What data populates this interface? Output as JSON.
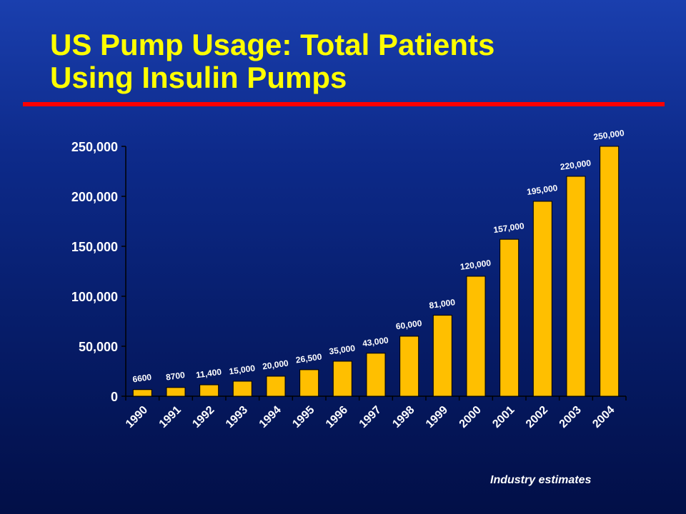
{
  "slide": {
    "title_line1": "US Pump Usage: Total Patients",
    "title_line2": "Using Insulin Pumps",
    "footnote": "Industry estimates"
  },
  "colors": {
    "title": "#ffff00",
    "rule": "#ff0000",
    "bar": "#ffbf00",
    "bar_edge": "#000000",
    "text": "#ffffff"
  },
  "chart_data": {
    "type": "bar",
    "categories": [
      "1990",
      "1991",
      "1992",
      "1993",
      "1994",
      "1995",
      "1996",
      "1997",
      "1998",
      "1999",
      "2000",
      "2001",
      "2002",
      "2003",
      "2004"
    ],
    "values": [
      6600,
      8700,
      11400,
      15000,
      20000,
      26500,
      35000,
      43000,
      60000,
      81000,
      120000,
      157000,
      195000,
      220000,
      250000
    ],
    "data_labels": [
      "6600",
      "8700",
      "11,400",
      "15,000",
      "20,000",
      "26,500",
      "35,000",
      "43,000",
      "60,000",
      "81,000",
      "120,000",
      "157,000",
      "195,000",
      "220,000",
      "250,000"
    ],
    "yticks": [
      0,
      50000,
      100000,
      150000,
      200000,
      250000
    ],
    "ytick_labels": [
      "0",
      "50,000",
      "100,000",
      "150,000",
      "200,000",
      "250,000"
    ],
    "ylim": [
      0,
      250000
    ],
    "xlabel": "",
    "ylabel": "",
    "grid": false,
    "legend": "none"
  }
}
